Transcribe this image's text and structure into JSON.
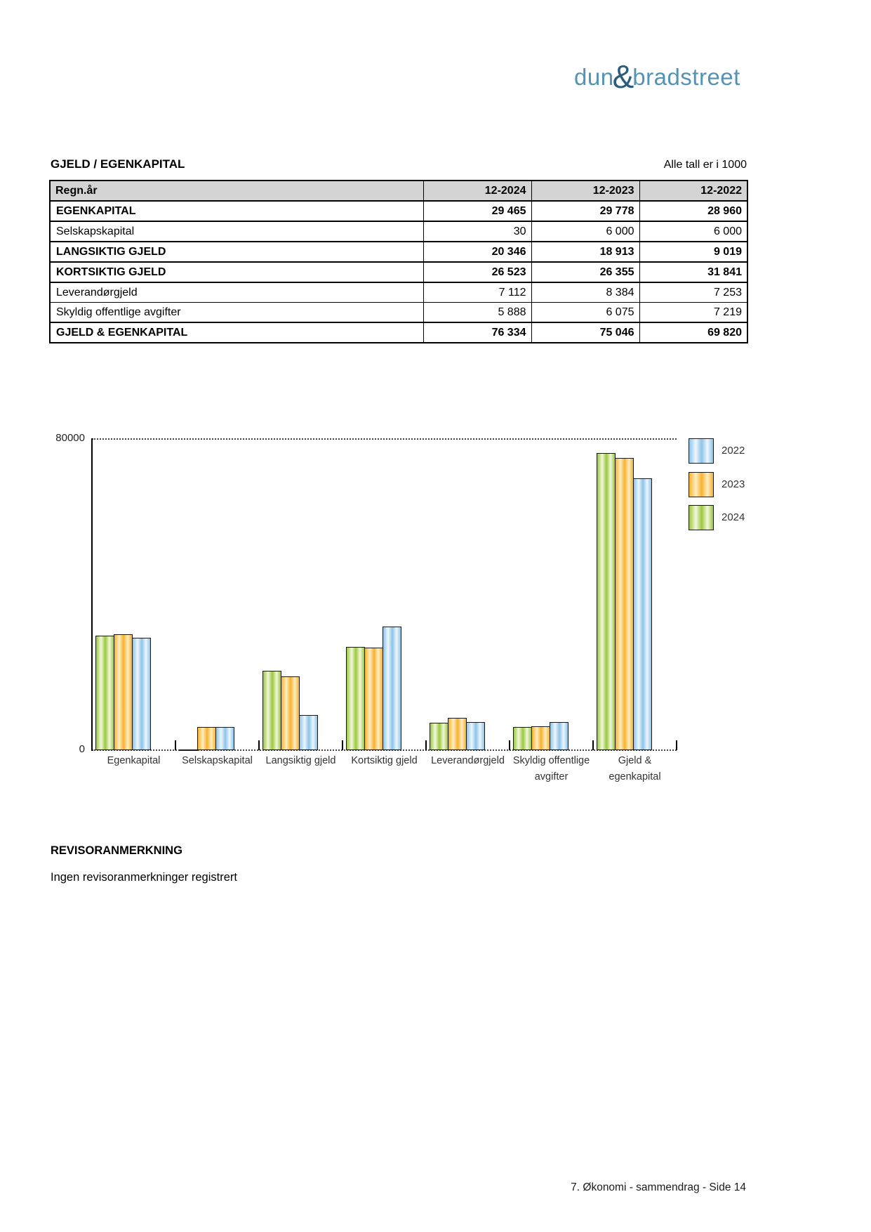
{
  "logo": {
    "dun": "dun",
    "amp": "&",
    "bradstreet": "bradstreet"
  },
  "section": {
    "title": "GJELD / EGENKAPITAL",
    "note": "Alle tall er i 1000"
  },
  "table": {
    "columns": [
      "Regn.år",
      "12-2024",
      "12-2023",
      "12-2022"
    ],
    "rows": [
      {
        "label": "EGENKAPITAL",
        "bold": true,
        "values": [
          "29 465",
          "29 778",
          "28 960"
        ]
      },
      {
        "label": "Selskapskapital",
        "bold": false,
        "values": [
          "30",
          "6 000",
          "6 000"
        ]
      },
      {
        "label": "LANGSIKTIG GJELD",
        "bold": true,
        "values": [
          "20 346",
          "18 913",
          "9 019"
        ]
      },
      {
        "label": "KORTSIKTIG GJELD",
        "bold": true,
        "values": [
          "26 523",
          "26 355",
          "31 841"
        ]
      },
      {
        "label": "Leverandørgjeld",
        "bold": false,
        "values": [
          "7 112",
          "8 384",
          "7 253"
        ]
      },
      {
        "label": "Skyldig offentlige avgifter",
        "bold": false,
        "values": [
          "5 888",
          "6 075",
          "7 219"
        ]
      },
      {
        "label": "GJELD & EGENKAPITAL",
        "bold": true,
        "values": [
          "76 334",
          "75 046",
          "69 820"
        ]
      }
    ]
  },
  "chart_data": {
    "type": "bar",
    "title": "",
    "xlabel": "",
    "ylabel": "",
    "ylim": [
      0,
      80000
    ],
    "yticks": [
      "80000",
      "0"
    ],
    "grid": "dotted top and baseline",
    "legend_position": "top-right-outside",
    "legend_order": [
      "2022",
      "2023",
      "2024"
    ],
    "categories": [
      "Egenkapital",
      "Selskapskapital",
      "Langsiktig gjeld",
      "Kortsiktig gjeld",
      "Leverandørgjeld",
      "Skyldig offentlige avgifter",
      "Gjeld & egenkapital"
    ],
    "category_label_lines": [
      [
        "Egenkapital"
      ],
      [
        "Selskapskapital"
      ],
      [
        "Langsiktig gjeld"
      ],
      [
        "Kortsiktig gjeld"
      ],
      [
        "Leverandørgjeld"
      ],
      [
        "Skyldig offentlige",
        "avgifter"
      ],
      [
        "Gjeld &",
        "egenkapital"
      ]
    ],
    "series": [
      {
        "name": "2024",
        "edge": "#9cc83e",
        "center": "#f1f8dc",
        "values": [
          29465,
          30,
          20346,
          26523,
          7112,
          5888,
          76334
        ]
      },
      {
        "name": "2023",
        "edge": "#f8b22e",
        "center": "#fdeec4",
        "values": [
          29778,
          6000,
          18913,
          26355,
          8384,
          6075,
          75046
        ]
      },
      {
        "name": "2022",
        "edge": "#8cc4e9",
        "center": "#eef7fd",
        "values": [
          28960,
          6000,
          9019,
          31841,
          7253,
          7219,
          69820
        ]
      }
    ]
  },
  "revisor": {
    "heading": "REVISORANMERKNING",
    "body": "Ingen revisoranmerkninger registrert"
  },
  "footer": {
    "text": "7. Økonomi - sammendrag - Side 14"
  },
  "colors": {
    "brand_text": "#5493b4",
    "brand_amp": "#2a5c7d",
    "table_header_bg": "#d4d4d4",
    "bar_border": "#1a1a1a"
  }
}
